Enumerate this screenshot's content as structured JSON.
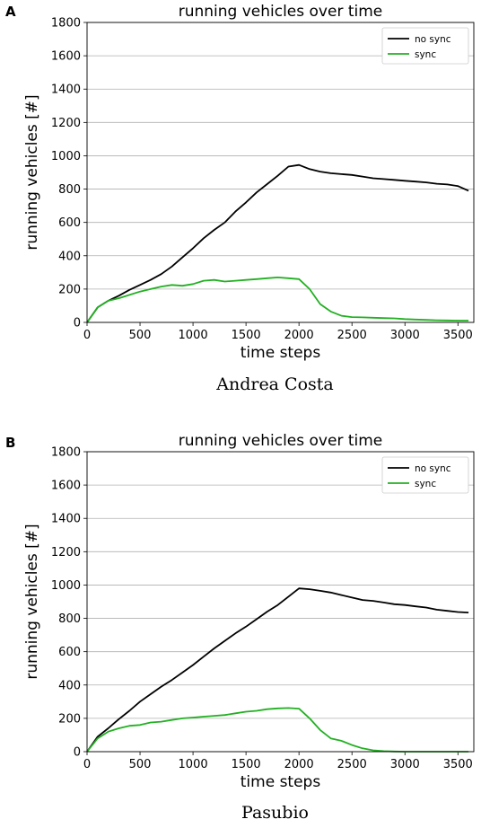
{
  "chart_data": [
    {
      "type": "line",
      "panel_label": "A",
      "title": "running vehicles over time",
      "xlabel": "time steps",
      "ylabel": "running vehicles [#]",
      "caption": "Andrea Costa",
      "xlim": [
        0,
        3650
      ],
      "ylim": [
        0,
        1800
      ],
      "xticks": [
        0,
        500,
        1000,
        1500,
        2000,
        2500,
        3000,
        3500
      ],
      "yticks": [
        0,
        200,
        400,
        600,
        800,
        1000,
        1200,
        1400,
        1600,
        1800
      ],
      "grid": "horizontal",
      "legend_position": "top-right",
      "series": [
        {
          "name": "no sync",
          "color": "#000000",
          "x": [
            0,
            100,
            200,
            300,
            400,
            500,
            600,
            700,
            800,
            900,
            1000,
            1100,
            1200,
            1300,
            1400,
            1500,
            1600,
            1700,
            1800,
            1900,
            2000,
            2100,
            2200,
            2300,
            2400,
            2500,
            2600,
            2700,
            2800,
            2900,
            3000,
            3100,
            3200,
            3300,
            3400,
            3500,
            3600
          ],
          "y": [
            0,
            90,
            130,
            160,
            195,
            225,
            255,
            290,
            335,
            390,
            445,
            505,
            555,
            600,
            665,
            720,
            780,
            830,
            880,
            935,
            945,
            920,
            905,
            895,
            890,
            885,
            875,
            865,
            860,
            855,
            850,
            845,
            840,
            832,
            828,
            818,
            790
          ]
        },
        {
          "name": "sync",
          "color": "#22b022",
          "x": [
            0,
            100,
            200,
            300,
            400,
            500,
            600,
            700,
            800,
            900,
            1000,
            1100,
            1200,
            1300,
            1400,
            1500,
            1600,
            1700,
            1800,
            1900,
            2000,
            2100,
            2200,
            2300,
            2400,
            2500,
            2600,
            2700,
            2800,
            2900,
            3000,
            3100,
            3200,
            3300,
            3400,
            3500,
            3600
          ],
          "y": [
            0,
            90,
            130,
            145,
            165,
            185,
            200,
            215,
            225,
            220,
            230,
            250,
            255,
            245,
            250,
            255,
            260,
            265,
            270,
            265,
            260,
            200,
            110,
            65,
            40,
            32,
            30,
            28,
            26,
            24,
            20,
            17,
            15,
            13,
            12,
            11,
            11
          ]
        }
      ]
    },
    {
      "type": "line",
      "panel_label": "B",
      "title": "running vehicles over time",
      "xlabel": "time steps",
      "ylabel": "running vehicles [#]",
      "caption": "Pasubio",
      "xlim": [
        0,
        3650
      ],
      "ylim": [
        0,
        1800
      ],
      "xticks": [
        0,
        500,
        1000,
        1500,
        2000,
        2500,
        3000,
        3500
      ],
      "yticks": [
        0,
        200,
        400,
        600,
        800,
        1000,
        1200,
        1400,
        1600,
        1800
      ],
      "grid": "horizontal",
      "legend_position": "top-right",
      "series": [
        {
          "name": "no sync",
          "color": "#000000",
          "x": [
            0,
            100,
            200,
            300,
            400,
            500,
            600,
            700,
            800,
            900,
            1000,
            1100,
            1200,
            1300,
            1400,
            1500,
            1600,
            1700,
            1800,
            1900,
            2000,
            2100,
            2200,
            2300,
            2400,
            2500,
            2600,
            2700,
            2800,
            2900,
            3000,
            3100,
            3200,
            3300,
            3400,
            3500,
            3600
          ],
          "y": [
            0,
            90,
            140,
            195,
            245,
            300,
            345,
            390,
            430,
            475,
            520,
            570,
            620,
            665,
            710,
            750,
            795,
            840,
            880,
            930,
            980,
            975,
            965,
            955,
            940,
            925,
            910,
            905,
            895,
            885,
            880,
            872,
            865,
            852,
            845,
            838,
            835
          ]
        },
        {
          "name": "sync",
          "color": "#22b022",
          "x": [
            0,
            100,
            200,
            300,
            400,
            500,
            600,
            700,
            800,
            900,
            1000,
            1100,
            1200,
            1300,
            1400,
            1500,
            1600,
            1700,
            1800,
            1900,
            2000,
            2100,
            2200,
            2300,
            2400,
            2500,
            2600,
            2700,
            2800,
            2900,
            3000,
            3100,
            3200,
            3300,
            3400,
            3500,
            3600
          ],
          "y": [
            0,
            80,
            120,
            140,
            155,
            160,
            175,
            180,
            190,
            200,
            205,
            210,
            215,
            220,
            230,
            240,
            245,
            255,
            260,
            262,
            258,
            200,
            130,
            80,
            65,
            40,
            20,
            8,
            3,
            1,
            0,
            0,
            0,
            0,
            0,
            0,
            0
          ]
        }
      ]
    }
  ]
}
